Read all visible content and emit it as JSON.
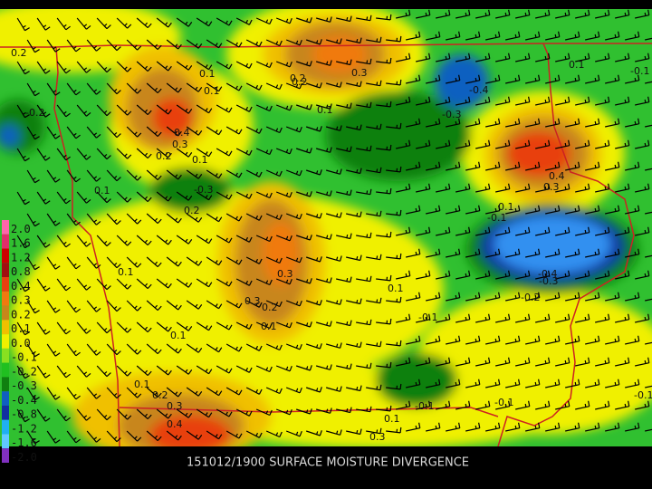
{
  "footer": {
    "title": "151012/1900 SURFACE MOISTURE DIVERGENCE"
  },
  "legend": {
    "entries": [
      {
        "label": "2.0",
        "color": "#ff66aa"
      },
      {
        "label": "1.6",
        "color": "#e0306a"
      },
      {
        "label": "1.2",
        "color": "#cc0000"
      },
      {
        "label": "0.8",
        "color": "#a01010"
      },
      {
        "label": "0.4",
        "color": "#e84010"
      },
      {
        "label": "0.3",
        "color": "#f07a10"
      },
      {
        "label": "0.2",
        "color": "#c8861a"
      },
      {
        "label": "0.1",
        "color": "#f0c000"
      },
      {
        "label": "0.0",
        "color": "#f0f000"
      },
      {
        "label": "-0.1",
        "color": "#88e020"
      },
      {
        "label": "-0.2",
        "color": "#20c020"
      },
      {
        "label": "-0.3",
        "color": "#108010"
      },
      {
        "label": "-0.4",
        "color": "#1060c0"
      },
      {
        "label": "-0.8",
        "color": "#1030a0"
      },
      {
        "label": "-1.2",
        "color": "#20b0f0"
      },
      {
        "label": "-1.6",
        "color": "#60c8ff"
      },
      {
        "label": "-2.0",
        "color": "#8030c0"
      }
    ]
  },
  "contours": {
    "labels": [
      "0.2",
      "0.1",
      "0.2",
      "0.1",
      "0.4",
      "0.3",
      "0.2",
      "0.1",
      "-0.3",
      "0.2",
      "0.1",
      "-0.2",
      "0.2",
      "0.3",
      "0.1",
      "-0.4",
      "-0.3",
      "0.1",
      "-0.1",
      "0.4",
      "0.3",
      "0.1",
      "-0.1",
      "-0.4",
      "-0.3",
      "-0.2",
      "0.1",
      "0.3",
      "0.3",
      "0.2",
      "0.1",
      "0.1",
      "-0.1",
      "0.1",
      "0.1",
      "0.2",
      "0.3",
      "0.4",
      "0.1",
      "0.3",
      "-0.1",
      "-0.1",
      "-0.1"
    ]
  }
}
